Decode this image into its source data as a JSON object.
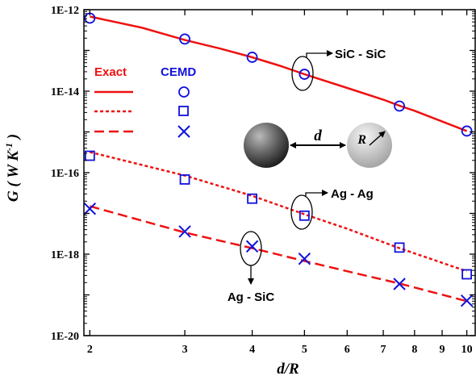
{
  "chart_data": {
    "type": "line",
    "xscale": "log",
    "yscale": "log",
    "xlim": [
      1.95,
      10.4
    ],
    "ylim": [
      1e-20,
      1e-12
    ],
    "xticks": [
      2,
      3,
      4,
      5,
      6,
      7,
      8,
      9,
      10
    ],
    "xtick_labels": [
      "2",
      "3",
      "4",
      "5",
      "6",
      "7",
      "8",
      "9",
      "10"
    ],
    "yticks": [
      1e-20,
      1e-18,
      1e-16,
      1e-14,
      1e-12
    ],
    "ytick_labels": [
      "1E-20",
      "1E-18",
      "1E-16",
      "1E-14",
      "1E-12"
    ],
    "xlabel": "d/R",
    "ylabel": "G ( W K",
    "ylabel_sup": "-1",
    "ylabel_end": " )",
    "grid": false,
    "legend": {
      "position": "top-left",
      "exact_header": "Exact",
      "cemd_header": "CEMD"
    },
    "series": [
      {
        "kind": "exact",
        "group": "sic",
        "color": "#ee1111",
        "dash": "solid",
        "x": [
          2,
          2.5,
          3,
          3.5,
          4,
          4.5,
          5,
          6,
          7,
          7.5,
          8,
          9,
          10
        ],
        "y": [
          6.8e-13,
          3.6e-13,
          1.8e-13,
          1.1e-13,
          6.8e-14,
          4.2e-14,
          2.6e-14,
          1.2e-14,
          6.2e-15,
          4.4e-15,
          3.3e-15,
          1.8e-15,
          1.05e-15
        ]
      },
      {
        "kind": "cemd",
        "group": "sic",
        "color": "#1111dd",
        "marker": "circle",
        "x": [
          2,
          3,
          4,
          5,
          7.5,
          10
        ],
        "y": [
          6.2e-13,
          1.9e-13,
          6.8e-14,
          2.6e-14,
          4.3e-15,
          1.05e-15
        ]
      },
      {
        "kind": "exact",
        "group": "ag",
        "color": "#ee1111",
        "dash": "dotted",
        "x": [
          2,
          3,
          4,
          5,
          6,
          7.5,
          10
        ],
        "y": [
          3.2e-16,
          8.5e-17,
          2.7e-17,
          9.5e-18,
          4.2e-18,
          1.4e-18,
          3.8e-19
        ]
      },
      {
        "kind": "cemd",
        "group": "ag",
        "color": "#1111dd",
        "marker": "square",
        "x": [
          2,
          3,
          4,
          5,
          7.5,
          10
        ],
        "y": [
          2.6e-16,
          6.8e-17,
          2.3e-17,
          8.8e-18,
          1.45e-18,
          3.2e-19
        ]
      },
      {
        "kind": "exact",
        "group": "agsic",
        "color": "#ee1111",
        "dash": "dashed",
        "x": [
          2,
          3,
          4,
          5,
          6,
          7.5,
          10
        ],
        "y": [
          1.5e-17,
          3.4e-18,
          1.4e-18,
          6.8e-19,
          3.8e-19,
          1.9e-19,
          7e-20
        ]
      },
      {
        "kind": "cemd",
        "group": "agsic",
        "color": "#1111dd",
        "marker": "x",
        "x": [
          2,
          3,
          4,
          5,
          7.5,
          10
        ],
        "y": [
          1.3e-17,
          3.6e-18,
          1.55e-18,
          7.7e-19,
          1.85e-19,
          7.2e-20
        ]
      }
    ],
    "annotations": [
      {
        "name": "sic",
        "text": "SiC - SiC"
      },
      {
        "name": "ag",
        "text": "Ag - Ag"
      },
      {
        "name": "agsic",
        "text": "Ag - SiC"
      }
    ],
    "inset": {
      "d_label": "d",
      "r_label": "R"
    }
  }
}
